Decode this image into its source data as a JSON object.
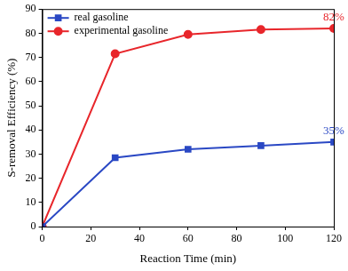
{
  "chart_data": {
    "type": "line",
    "x_label": "Reaction Time (min)",
    "y_label": "S-removal Efficiency (%)",
    "x": [
      0,
      30,
      60,
      90,
      120
    ],
    "series": [
      {
        "name": "real gasoline",
        "color": "#2a48c4",
        "marker": "square",
        "line_style": "solid",
        "values": [
          0,
          28.5,
          32,
          33.5,
          35
        ],
        "value_labels": [
          null,
          null,
          null,
          null,
          "35%"
        ]
      },
      {
        "name": "experimental gasoline",
        "color": "#e8262b",
        "marker": "circle",
        "line_style": "solid",
        "values": [
          0,
          71.5,
          79.5,
          81.5,
          82
        ],
        "value_labels": [
          null,
          null,
          null,
          null,
          "82%"
        ]
      }
    ],
    "xlim": [
      0,
      120
    ],
    "xticks": [
      0,
      20,
      40,
      60,
      80,
      100,
      120
    ],
    "ylim": [
      0,
      90
    ],
    "yticks": [
      0,
      10,
      20,
      30,
      40,
      50,
      60,
      70,
      80,
      90
    ],
    "grid": false,
    "legend": "upper left",
    "data_labels": true
  }
}
